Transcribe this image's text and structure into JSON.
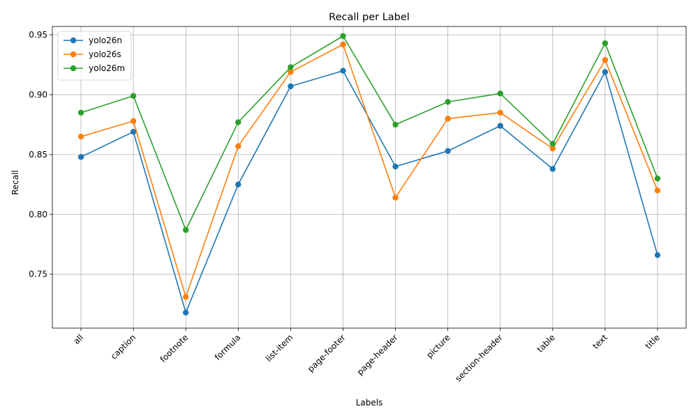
{
  "chart_data": {
    "type": "line",
    "title": "Recall per Label",
    "xlabel": "Labels",
    "ylabel": "Recall",
    "categories": [
      "all",
      "caption",
      "footnote",
      "formula",
      "list-item",
      "page-footer",
      "page-header",
      "picture",
      "section-header",
      "table",
      "text",
      "title"
    ],
    "ylim": [
      0.705,
      0.957
    ],
    "yticks": [
      "0.75",
      "0.80",
      "0.85",
      "0.90",
      "0.95"
    ],
    "grid": true,
    "legend_position": "top-left",
    "marker": "circle",
    "series": [
      {
        "name": "yolo26n",
        "color": "#1f77b4",
        "values": [
          0.848,
          0.869,
          0.718,
          0.825,
          0.907,
          0.92,
          0.84,
          0.853,
          0.874,
          0.838,
          0.919,
          0.766
        ]
      },
      {
        "name": "yolo26s",
        "color": "#ff7f0e",
        "values": [
          0.865,
          0.878,
          0.731,
          0.857,
          0.919,
          0.942,
          0.814,
          0.88,
          0.885,
          0.855,
          0.929,
          0.82
        ]
      },
      {
        "name": "yolo26m",
        "color": "#2ca02c",
        "values": [
          0.885,
          0.899,
          0.787,
          0.877,
          0.923,
          0.949,
          0.875,
          0.894,
          0.901,
          0.859,
          0.943,
          0.83
        ]
      }
    ]
  }
}
